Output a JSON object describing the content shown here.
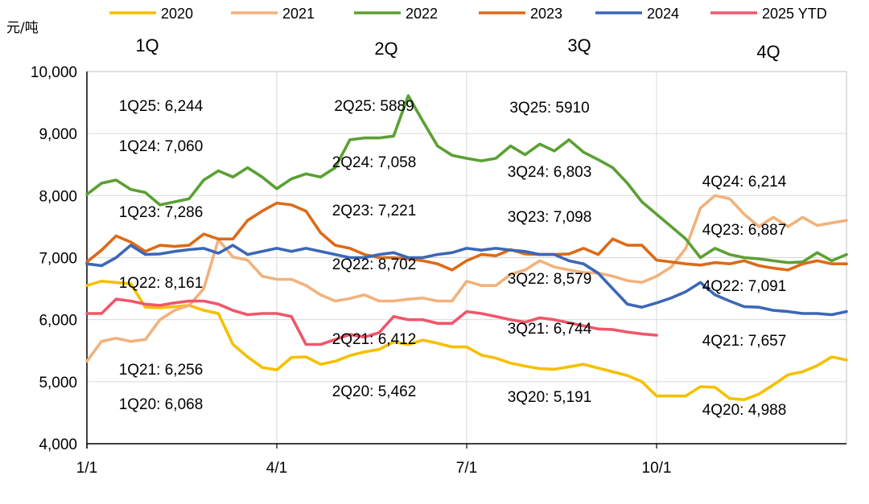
{
  "chart_data": {
    "type": "line",
    "ylabel": "元/吨",
    "ylim": [
      4000,
      10000
    ],
    "yticks": [
      4000,
      5000,
      6000,
      7000,
      8000,
      9000,
      10000
    ],
    "ytick_labels": [
      "4,000",
      "5,000",
      "6,000",
      "7,000",
      "8,000",
      "9,000",
      "10,000"
    ],
    "xlim": [
      0,
      52
    ],
    "xticks": [
      0,
      13,
      26,
      39
    ],
    "xtick_labels": [
      "1/1",
      "4/1",
      "7/1",
      "10/1"
    ],
    "quarter_labels": [
      "1Q",
      "2Q",
      "3Q",
      "4Q"
    ],
    "grid": true,
    "legend_position": "top",
    "series": [
      {
        "name": "2020",
        "color": "#f5c000",
        "values": [
          6550,
          6620,
          6600,
          6580,
          6200,
          6190,
          6210,
          6230,
          6150,
          6100,
          5600,
          5400,
          5230,
          5190,
          5390,
          5400,
          5280,
          5330,
          5420,
          5480,
          5520,
          5640,
          5600,
          5670,
          5620,
          5560,
          5560,
          5430,
          5380,
          5300,
          5250,
          5210,
          5200,
          5240,
          5280,
          5220,
          5160,
          5100,
          5000,
          4770,
          4770,
          4770,
          4920,
          4910,
          4730,
          4710,
          4800,
          4950,
          5110,
          5160,
          5260,
          5400,
          5350
        ]
      },
      {
        "name": "2021",
        "color": "#f2b27c",
        "values": [
          5330,
          5650,
          5700,
          5650,
          5680,
          6000,
          6150,
          6230,
          6500,
          7290,
          7010,
          6960,
          6700,
          6650,
          6650,
          6550,
          6400,
          6300,
          6340,
          6400,
          6300,
          6300,
          6330,
          6350,
          6300,
          6300,
          6620,
          6550,
          6550,
          6730,
          6800,
          6950,
          6850,
          6800,
          6760,
          6750,
          6700,
          6630,
          6600,
          6700,
          6850,
          7150,
          7800,
          8000,
          7950,
          7700,
          7500,
          7650,
          7500,
          7650,
          7520,
          7560,
          7600
        ]
      },
      {
        "name": "2022",
        "color": "#5aa033",
        "values": [
          8020,
          8200,
          8250,
          8100,
          8050,
          7850,
          7900,
          7950,
          8250,
          8400,
          8300,
          8450,
          8300,
          8110,
          8270,
          8350,
          8300,
          8450,
          8900,
          8930,
          8930,
          8960,
          9610,
          9200,
          8800,
          8650,
          8600,
          8560,
          8600,
          8800,
          8660,
          8830,
          8720,
          8900,
          8700,
          8580,
          8450,
          8200,
          7900,
          7700,
          7500,
          7300,
          7000,
          7150,
          7050,
          7000,
          6980,
          6950,
          6920,
          6930,
          7080,
          6950,
          7050
        ]
      },
      {
        "name": "2023",
        "color": "#dd6a18",
        "values": [
          6930,
          7120,
          7350,
          7250,
          7100,
          7200,
          7180,
          7200,
          7380,
          7300,
          7300,
          7600,
          7750,
          7880,
          7850,
          7750,
          7400,
          7200,
          7150,
          7050,
          7000,
          7000,
          6980,
          6950,
          6900,
          6800,
          6950,
          7050,
          7030,
          7130,
          7060,
          7050,
          7050,
          7060,
          7150,
          7050,
          7300,
          7200,
          7200,
          6960,
          6930,
          6900,
          6880,
          6920,
          6900,
          6950,
          6870,
          6830,
          6800,
          6900,
          6950,
          6900,
          6900
        ]
      },
      {
        "name": "2024",
        "color": "#3c67b6",
        "values": [
          6900,
          6870,
          7000,
          7200,
          7050,
          7060,
          7100,
          7130,
          7150,
          7070,
          7200,
          7050,
          7100,
          7150,
          7100,
          7150,
          7100,
          7050,
          7000,
          7000,
          7050,
          7080,
          7000,
          7000,
          7050,
          7080,
          7150,
          7120,
          7150,
          7120,
          7100,
          7050,
          7050,
          6950,
          6900,
          6750,
          6500,
          6250,
          6200,
          6270,
          6350,
          6450,
          6600,
          6400,
          6300,
          6210,
          6200,
          6150,
          6130,
          6100,
          6100,
          6080,
          6130
        ]
      },
      {
        "name": "2025 YTD",
        "color": "#f0566a",
        "values": [
          6100,
          6100,
          6330,
          6300,
          6250,
          6230,
          6270,
          6300,
          6300,
          6250,
          6150,
          6080,
          6100,
          6100,
          6050,
          5600,
          5600,
          5680,
          5760,
          5720,
          5790,
          6050,
          6000,
          6000,
          5940,
          5940,
          6130,
          6100,
          6050,
          6000,
          5960,
          6030,
          6000,
          5950,
          5900,
          5850,
          5840,
          5800,
          5770,
          5750
        ]
      }
    ],
    "annotations": [
      {
        "text": "1Q25: 6,244",
        "col": 0
      },
      {
        "text": "1Q24: 7,060",
        "col": 0
      },
      {
        "text": "1Q23: 7,286",
        "col": 0
      },
      {
        "text": "1Q22: 8,161",
        "col": 0
      },
      {
        "text": "1Q21: 6,256",
        "col": 0
      },
      {
        "text": "1Q20: 6,068",
        "col": 0
      },
      {
        "text": "2Q25: 5889",
        "col": 1
      },
      {
        "text": "2Q24: 7,058",
        "col": 1
      },
      {
        "text": "2Q23: 7,221",
        "col": 1
      },
      {
        "text": "2Q22: 8,702",
        "col": 1
      },
      {
        "text": "2Q21: 6,412",
        "col": 1
      },
      {
        "text": "2Q20: 5,462",
        "col": 1
      },
      {
        "text": "3Q25: 5910",
        "col": 2
      },
      {
        "text": "3Q24: 6,803",
        "col": 2
      },
      {
        "text": "3Q23: 7,098",
        "col": 2
      },
      {
        "text": "3Q22: 8,579",
        "col": 2
      },
      {
        "text": "3Q21: 6,744",
        "col": 2
      },
      {
        "text": "3Q20: 5,191",
        "col": 2
      },
      {
        "text": "4Q24: 6,214",
        "col": 3
      },
      {
        "text": "4Q23: 6,887",
        "col": 3
      },
      {
        "text": "4Q22: 7,091",
        "col": 3
      },
      {
        "text": "4Q21: 7,657",
        "col": 3
      },
      {
        "text": "4Q20: 4,988",
        "col": 3
      }
    ]
  }
}
